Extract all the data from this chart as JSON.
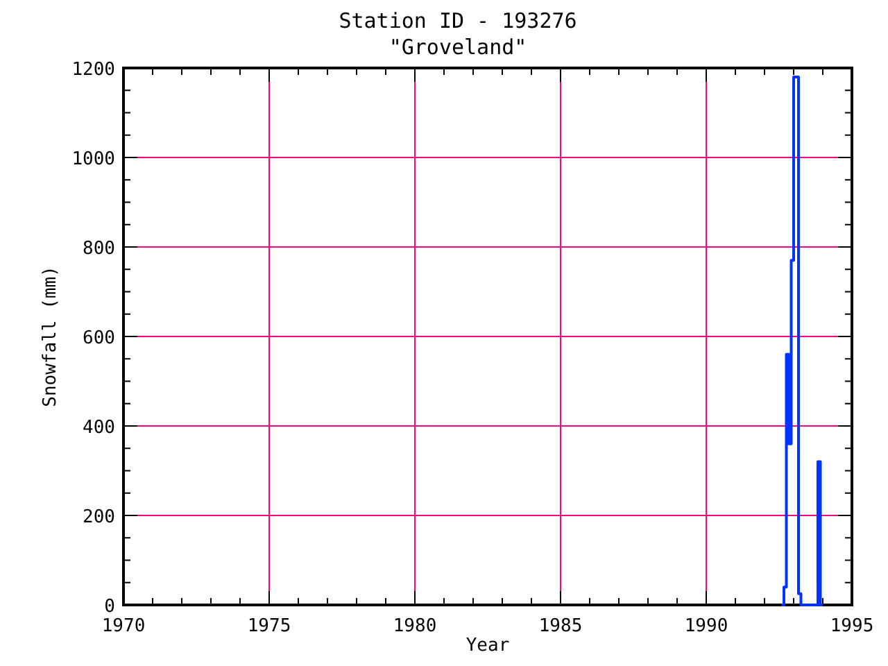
{
  "chart_data": {
    "type": "step",
    "title": "Station ID - 193276",
    "subtitle": "\"Groveland\"",
    "xlabel": "Year",
    "ylabel": "Snowfall (mm)",
    "x": [
      1992.583,
      1992.667,
      1992.75,
      1992.833,
      1992.917,
      1993.0,
      1993.083,
      1993.167,
      1993.25,
      1993.333,
      1993.417,
      1993.5,
      1993.583,
      1993.667,
      1993.75,
      1993.833,
      1993.917,
      1994.0
    ],
    "series": [
      {
        "color": "#0033ff",
        "values": [
          0,
          40,
          560,
          360,
          770,
          1180,
          1180,
          25,
          0,
          0,
          0,
          0,
          0,
          0,
          0,
          320,
          0,
          0
        ]
      }
    ],
    "xlim": [
      1970,
      1995
    ],
    "xticks": [
      1970,
      1975,
      1980,
      1985,
      1990,
      1995
    ],
    "ylim": [
      0,
      1200
    ],
    "yticks": [
      0,
      200,
      400,
      600,
      800,
      1000,
      1200
    ],
    "grid": true
  }
}
